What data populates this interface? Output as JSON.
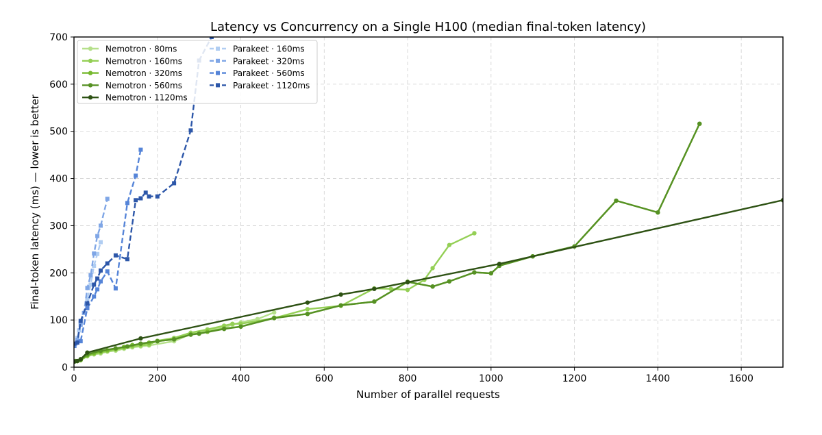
{
  "chart_data": {
    "type": "line",
    "title": "Latency vs Concurrency on a Single H100 (median final-token latency)",
    "xlabel": "Number of parallel requests",
    "ylabel": "Final-token latency (ms)  —  lower is better",
    "xlim": [
      0,
      1700
    ],
    "ylim": [
      0,
      700
    ],
    "xticks": [
      "0",
      "200",
      "400",
      "600",
      "800",
      "1000",
      "1200",
      "1400",
      "1600"
    ],
    "yticks": [
      "0",
      "100",
      "200",
      "300",
      "400",
      "500",
      "600",
      "700"
    ],
    "grid": true,
    "legend_placement": "top-left",
    "series": [
      {
        "name": "Nemotron · 80ms",
        "color": "#b5e08a",
        "marker": "circle",
        "dash": "solid",
        "points": [
          [
            1,
            12
          ],
          [
            4,
            13
          ],
          [
            8,
            13
          ],
          [
            16,
            15
          ],
          [
            32,
            23
          ],
          [
            48,
            27
          ],
          [
            64,
            29
          ],
          [
            80,
            33
          ],
          [
            100,
            35
          ],
          [
            120,
            39
          ],
          [
            140,
            42
          ],
          [
            160,
            44
          ],
          [
            180,
            46
          ],
          [
            240,
            55
          ],
          [
            280,
            70
          ],
          [
            320,
            78
          ],
          [
            360,
            85
          ],
          [
            380,
            90
          ],
          [
            400,
            95
          ],
          [
            440,
            102
          ],
          [
            480,
            116
          ]
        ]
      },
      {
        "name": "Nemotron · 160ms",
        "color": "#94cf55",
        "marker": "circle",
        "dash": "solid",
        "points": [
          [
            1,
            12
          ],
          [
            4,
            13
          ],
          [
            8,
            13
          ],
          [
            16,
            15
          ],
          [
            32,
            24
          ],
          [
            48,
            28
          ],
          [
            64,
            31
          ],
          [
            80,
            34
          ],
          [
            100,
            37
          ],
          [
            120,
            41
          ],
          [
            140,
            44
          ],
          [
            160,
            46
          ],
          [
            180,
            48
          ],
          [
            200,
            56
          ],
          [
            240,
            62
          ],
          [
            280,
            73
          ],
          [
            320,
            80
          ],
          [
            360,
            88
          ],
          [
            380,
            92
          ],
          [
            400,
            92
          ],
          [
            480,
            104
          ],
          [
            560,
            123
          ],
          [
            640,
            130
          ],
          [
            720,
            167
          ],
          [
            760,
            166
          ],
          [
            800,
            164
          ],
          [
            840,
            185
          ],
          [
            860,
            210
          ],
          [
            900,
            259
          ],
          [
            960,
            284
          ]
        ]
      },
      {
        "name": "Nemotron · 320ms",
        "color": "#76b92e",
        "marker": "circle",
        "dash": "solid",
        "points": [
          [
            1,
            12
          ],
          [
            4,
            13
          ],
          [
            8,
            13
          ],
          [
            16,
            15
          ],
          [
            32,
            25
          ],
          [
            48,
            30
          ],
          [
            64,
            33
          ],
          [
            80,
            36
          ],
          [
            100,
            39
          ],
          [
            120,
            43
          ],
          [
            140,
            47
          ],
          [
            160,
            49
          ],
          [
            180,
            52
          ],
          [
            200,
            55
          ],
          [
            240,
            59
          ],
          [
            280,
            69
          ],
          [
            320,
            75
          ],
          [
            360,
            82
          ],
          [
            400,
            86
          ],
          [
            480,
            105
          ],
          [
            560,
            113
          ],
          [
            640,
            131
          ],
          [
            720,
            139
          ],
          [
            800,
            181
          ],
          [
            860,
            171
          ],
          [
            900,
            182
          ],
          [
            960,
            201
          ],
          [
            1000,
            199
          ],
          [
            1020,
            215
          ],
          [
            1100,
            235
          ],
          [
            1200,
            256
          ],
          [
            1300,
            353
          ],
          [
            1400,
            328
          ],
          [
            1500,
            516
          ]
        ]
      },
      {
        "name": "Nemotron · 560ms",
        "color": "#569124",
        "marker": "circle",
        "dash": "solid",
        "points": [
          [
            1,
            12
          ],
          [
            4,
            13
          ],
          [
            8,
            13
          ],
          [
            16,
            16
          ],
          [
            32,
            27
          ],
          [
            64,
            35
          ],
          [
            100,
            40
          ],
          [
            128,
            44
          ],
          [
            160,
            50
          ],
          [
            200,
            55
          ],
          [
            240,
            59
          ],
          [
            280,
            69
          ],
          [
            300,
            71
          ],
          [
            360,
            81
          ],
          [
            400,
            86
          ],
          [
            480,
            104
          ],
          [
            560,
            113
          ],
          [
            640,
            131
          ],
          [
            720,
            139
          ],
          [
            800,
            181
          ],
          [
            860,
            171
          ],
          [
            900,
            182
          ],
          [
            960,
            201
          ],
          [
            1000,
            199
          ],
          [
            1020,
            215
          ],
          [
            1100,
            235
          ],
          [
            1200,
            256
          ],
          [
            1300,
            353
          ],
          [
            1400,
            328
          ],
          [
            1500,
            516
          ]
        ]
      },
      {
        "name": "Nemotron · 1120ms",
        "color": "#2e5214",
        "marker": "circle",
        "dash": "solid",
        "points": [
          [
            1,
            12
          ],
          [
            8,
            13
          ],
          [
            16,
            17
          ],
          [
            32,
            31
          ],
          [
            160,
            61
          ],
          [
            560,
            137
          ],
          [
            640,
            154
          ],
          [
            720,
            166
          ],
          [
            800,
            180
          ],
          [
            1020,
            219
          ],
          [
            1700,
            354
          ]
        ]
      },
      {
        "name": "Parakeet · 160ms",
        "color": "#b0cdf2",
        "marker": "square",
        "dash": "dashed",
        "points": [
          [
            1,
            46
          ],
          [
            4,
            50
          ],
          [
            8,
            62
          ],
          [
            12,
            78
          ],
          [
            16,
            95
          ],
          [
            24,
            115
          ],
          [
            32,
            145
          ],
          [
            40,
            175
          ],
          [
            48,
            215
          ],
          [
            56,
            240
          ],
          [
            64,
            265
          ]
        ]
      },
      {
        "name": "Parakeet · 320ms",
        "color": "#7fa6e6",
        "marker": "square",
        "dash": "dashed",
        "points": [
          [
            1,
            45
          ],
          [
            8,
            58
          ],
          [
            16,
            90
          ],
          [
            24,
            115
          ],
          [
            32,
            168
          ],
          [
            40,
            195
          ],
          [
            48,
            241
          ],
          [
            56,
            278
          ],
          [
            64,
            300
          ],
          [
            80,
            357
          ]
        ]
      },
      {
        "name": "Parakeet · 560ms",
        "color": "#5584d8",
        "marker": "square",
        "dash": "dashed",
        "points": [
          [
            1,
            45
          ],
          [
            16,
            55
          ],
          [
            32,
            125
          ],
          [
            48,
            150
          ],
          [
            56,
            165
          ],
          [
            64,
            182
          ],
          [
            80,
            203
          ],
          [
            100,
            167
          ],
          [
            128,
            348
          ],
          [
            148,
            406
          ],
          [
            160,
            461
          ]
        ]
      },
      {
        "name": "Parakeet · 1120ms",
        "color": "#2d57a9",
        "marker": "square",
        "dash": "dashed",
        "points": [
          [
            1,
            50
          ],
          [
            8,
            52
          ],
          [
            16,
            98
          ],
          [
            32,
            135
          ],
          [
            48,
            175
          ],
          [
            56,
            188
          ],
          [
            64,
            205
          ],
          [
            80,
            220
          ],
          [
            100,
            237
          ],
          [
            128,
            229
          ],
          [
            148,
            354
          ],
          [
            160,
            358
          ],
          [
            172,
            370
          ],
          [
            180,
            362
          ],
          [
            200,
            362
          ],
          [
            240,
            390
          ],
          [
            280,
            502
          ],
          [
            300,
            650
          ],
          [
            330,
            700
          ]
        ]
      }
    ]
  }
}
